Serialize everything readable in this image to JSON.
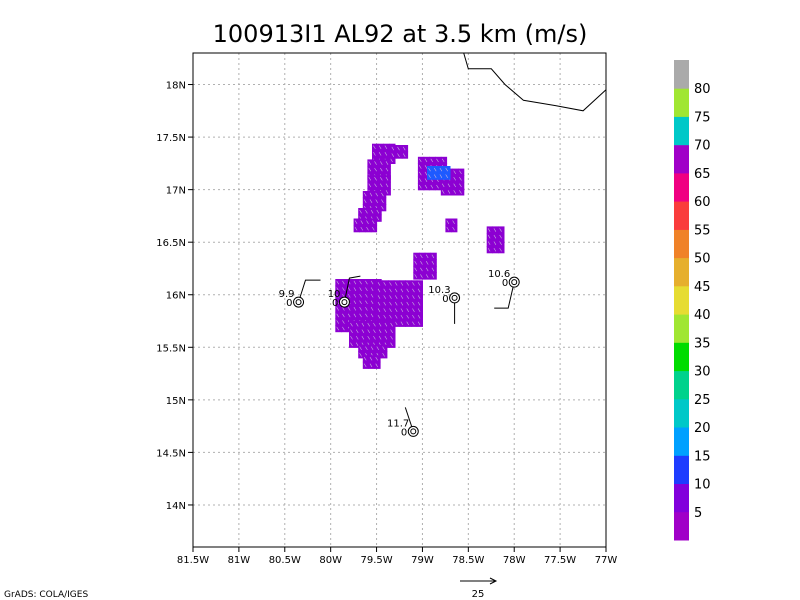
{
  "title": "100913I1  AL92 at 3.5 km (m/s)",
  "credit": "GrADS: COLA/IGES",
  "map": {
    "lon_min": -81.5,
    "lon_max": -77.0,
    "lat_min": 13.6,
    "lat_max": 18.3,
    "x_ticks": [
      {
        "v": -81.5,
        "t": "81.5W"
      },
      {
        "v": -81,
        "t": "81W"
      },
      {
        "v": -80.5,
        "t": "80.5W"
      },
      {
        "v": -80,
        "t": "80W"
      },
      {
        "v": -79.5,
        "t": "79.5W"
      },
      {
        "v": -79,
        "t": "79W"
      },
      {
        "v": -78.5,
        "t": "78.5W"
      },
      {
        "v": -78,
        "t": "78W"
      },
      {
        "v": -77.5,
        "t": "77.5W"
      },
      {
        "v": -77,
        "t": "77W"
      }
    ],
    "y_ticks": [
      {
        "v": 14,
        "t": "14N"
      },
      {
        "v": 14.5,
        "t": "14.5N"
      },
      {
        "v": 15,
        "t": "15N"
      },
      {
        "v": 15.5,
        "t": "15.5N"
      },
      {
        "v": 16,
        "t": "16N"
      },
      {
        "v": 16.5,
        "t": "16.5N"
      },
      {
        "v": 17,
        "t": "17N"
      },
      {
        "v": 17.5,
        "t": "17.5N"
      },
      {
        "v": 18,
        "t": "18N"
      }
    ],
    "coastline": [
      [
        -78.55,
        18.3
      ],
      [
        -78.5,
        18.15
      ],
      [
        -78.25,
        18.15
      ],
      [
        -78.1,
        18.0
      ],
      [
        -77.9,
        17.85
      ],
      [
        -77.55,
        17.8
      ],
      [
        -77.25,
        17.75
      ],
      [
        -77.0,
        17.95
      ]
    ],
    "grid_step": 0.0625,
    "wind_cells": [
      {
        "lon": [
          -79.55,
          -79.35
        ],
        "lat": [
          17.25,
          17.4
        ]
      },
      {
        "lon": [
          -79.6,
          -79.35
        ],
        "lat": [
          17.1,
          17.25
        ]
      },
      {
        "lon": [
          -79.6,
          -79.4
        ],
        "lat": [
          16.95,
          17.1
        ]
      },
      {
        "lon": [
          -79.65,
          -79.4
        ],
        "lat": [
          16.8,
          16.95
        ]
      },
      {
        "lon": [
          -79.7,
          -79.5
        ],
        "lat": [
          16.7,
          16.8
        ]
      },
      {
        "lon": [
          -79.75,
          -79.55
        ],
        "lat": [
          16.6,
          16.7
        ]
      },
      {
        "lon": [
          -79.35,
          -79.2
        ],
        "lat": [
          17.3,
          17.4
        ]
      },
      {
        "lon": [
          -79.05,
          -78.75
        ],
        "lat": [
          17.0,
          17.3
        ]
      },
      {
        "lon": [
          -78.8,
          -78.6
        ],
        "lat": [
          16.95,
          17.15
        ]
      },
      {
        "lon": [
          -78.75,
          -78.65
        ],
        "lat": [
          16.6,
          16.7
        ]
      },
      {
        "lon": [
          -78.3,
          -78.15
        ],
        "lat": [
          16.4,
          16.6
        ]
      },
      {
        "lon": [
          -79.1,
          -78.9
        ],
        "lat": [
          16.15,
          16.35
        ]
      },
      {
        "lon": [
          -79.95,
          -79.5
        ],
        "lat": [
          15.65,
          16.1
        ]
      },
      {
        "lon": [
          -79.5,
          -79.0
        ],
        "lat": [
          15.7,
          16.1
        ]
      },
      {
        "lon": [
          -79.8,
          -79.35
        ],
        "lat": [
          15.5,
          15.7
        ]
      },
      {
        "lon": [
          -79.7,
          -79.4
        ],
        "lat": [
          15.4,
          15.5
        ]
      },
      {
        "lon": [
          -79.65,
          -79.5
        ],
        "lat": [
          15.3,
          15.4
        ]
      }
    ],
    "strong_cells": [
      {
        "lon": [
          -78.95,
          -78.75
        ],
        "lat": [
          17.1,
          17.2
        ]
      }
    ],
    "stations": [
      {
        "lon": -80.35,
        "lat": 15.93,
        "speed": "9.9",
        "dir": "0",
        "barb": [
          [
            0,
            0
          ],
          [
            7,
            -22
          ],
          [
            22,
            -22
          ]
        ]
      },
      {
        "lon": -79.85,
        "lat": 15.93,
        "speed": "10",
        "dir": "0",
        "barb": [
          [
            0,
            0
          ],
          [
            5,
            -24
          ],
          [
            16,
            -26
          ]
        ]
      },
      {
        "lon": -78.65,
        "lat": 15.97,
        "speed": "10.3",
        "dir": "0",
        "barb": [
          [
            0,
            0
          ],
          [
            0,
            26
          ]
        ]
      },
      {
        "lon": -78.0,
        "lat": 16.12,
        "speed": "10.6",
        "dir": "0",
        "barb": [
          [
            0,
            0
          ],
          [
            -6,
            26
          ],
          [
            -20,
            26
          ]
        ]
      },
      {
        "lon": -79.1,
        "lat": 14.7,
        "speed": "11.7",
        "dir": "0",
        "barb": [
          [
            0,
            0
          ],
          [
            -8,
            -24
          ]
        ]
      }
    ]
  },
  "colorbar": {
    "colors": [
      "#a000c8",
      "#8200dc",
      "#1e3cff",
      "#00a0ff",
      "#00c8c8",
      "#00d28c",
      "#00dc00",
      "#a0e632",
      "#e6dc32",
      "#e6af2d",
      "#f08228",
      "#fa3c3c",
      "#f00082",
      "#a000c8",
      "#00c8c8",
      "#a0e632",
      "#aaaaaa"
    ],
    "labels": [
      "5",
      "10",
      "15",
      "20",
      "25",
      "30",
      "35",
      "40",
      "45",
      "50",
      "55",
      "60",
      "65",
      "70",
      "75",
      "80"
    ]
  },
  "ref_vector": {
    "label": "25"
  }
}
